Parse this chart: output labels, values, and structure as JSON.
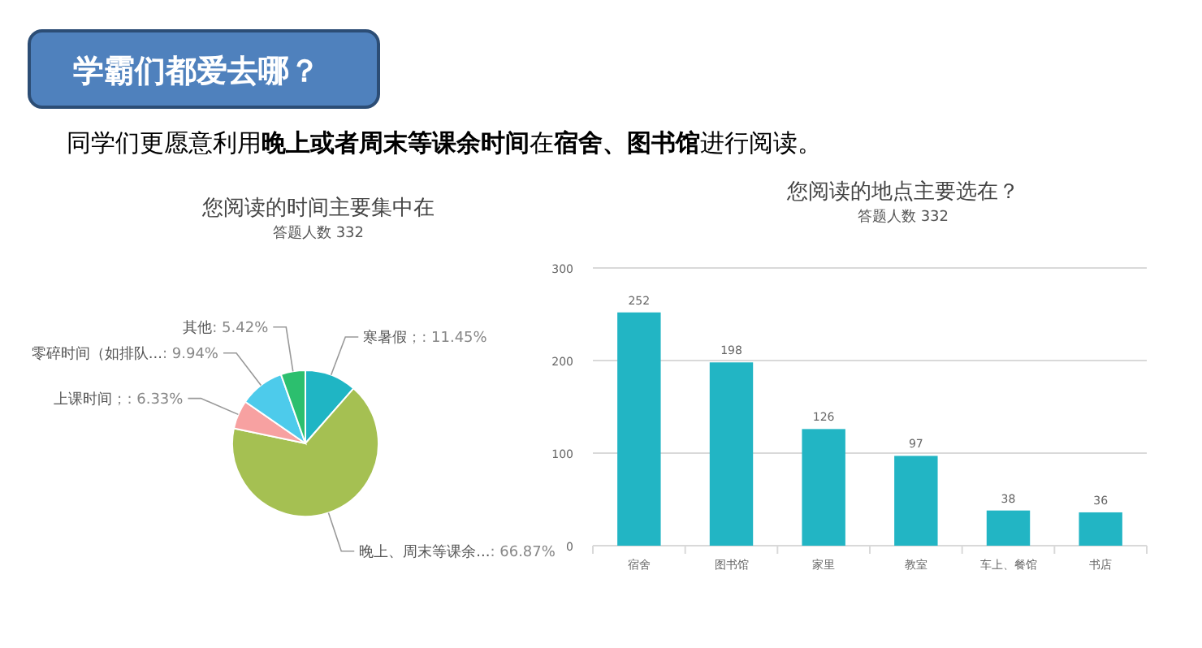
{
  "chart_data": [
    {
      "type": "other",
      "title": "学霸们都爱去哪？",
      "annotations": [
        "同学们更愿意利用**晚上或者周末等课余时间**在**宿舍、图书馆**进行阅读。"
      ]
    },
    {
      "type": "pie",
      "title": "您阅读的时间主要集中在",
      "subtitle": "答题人数 332",
      "categories": [
        "寒暑假",
        "晚上、周末等课余...",
        "上课时间",
        "零碎时间（如排队...",
        "其他"
      ],
      "values": [
        11.45,
        66.87,
        6.33,
        9.94,
        5.42
      ],
      "value_labels": [
        "；: 11.45%",
        ": 66.87%",
        "；: 6.33%",
        ": 9.94%",
        ": 5.42%"
      ],
      "colors": [
        "#1fb5c4",
        "#a5c052",
        "#f7a1a1",
        "#4dcbeb",
        "#2cbf6e"
      ]
    },
    {
      "type": "bar",
      "title": "您阅读的地点主要选在？",
      "subtitle": "答题人数 332",
      "categories": [
        "宿舍",
        "图书馆",
        "家里",
        "教室",
        "车上、餐馆",
        "书店"
      ],
      "values": [
        252,
        198,
        126,
        97,
        38,
        36
      ],
      "color": "#22b5c4",
      "ylim": [
        0,
        300
      ],
      "yticks": [
        0,
        100,
        200,
        300
      ],
      "grid": "y",
      "data_labels": true
    }
  ]
}
